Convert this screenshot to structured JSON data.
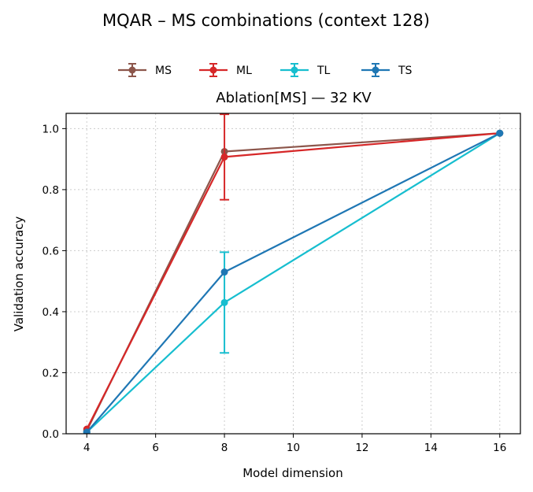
{
  "figure": {
    "suptitle": "MQAR – MS combinations (context 128)"
  },
  "chart_data": {
    "type": "line",
    "title": "Ablation[MS] — 32 KV",
    "xlabel": "Model dimension",
    "ylabel": "Validation accuracy",
    "xlim": [
      3.4,
      16.6
    ],
    "ylim": [
      0.0,
      1.05
    ],
    "xticks": [
      4,
      6,
      8,
      10,
      12,
      14,
      16
    ],
    "yticks": [
      0.0,
      0.2,
      0.4,
      0.6,
      0.8,
      1.0
    ],
    "grid": true,
    "legend_position": "top-center",
    "series": [
      {
        "name": "MS",
        "color": "#8c564b",
        "x": [
          4,
          8,
          16
        ],
        "y": [
          0.01,
          0.925,
          0.985
        ],
        "err": [
          0,
          0,
          0
        ]
      },
      {
        "name": "ML",
        "color": "#d62728",
        "x": [
          4,
          8,
          16
        ],
        "y": [
          0.015,
          0.907,
          0.985
        ],
        "err": [
          0,
          0.14,
          0
        ]
      },
      {
        "name": "TL",
        "color": "#17becf",
        "x": [
          4,
          8,
          16
        ],
        "y": [
          0.005,
          0.43,
          0.985
        ],
        "err": [
          0,
          0.165,
          0
        ]
      },
      {
        "name": "TS",
        "color": "#1f77b4",
        "x": [
          4,
          8,
          16
        ],
        "y": [
          0.005,
          0.53,
          0.985
        ],
        "err": [
          0,
          0,
          0
        ]
      }
    ]
  }
}
